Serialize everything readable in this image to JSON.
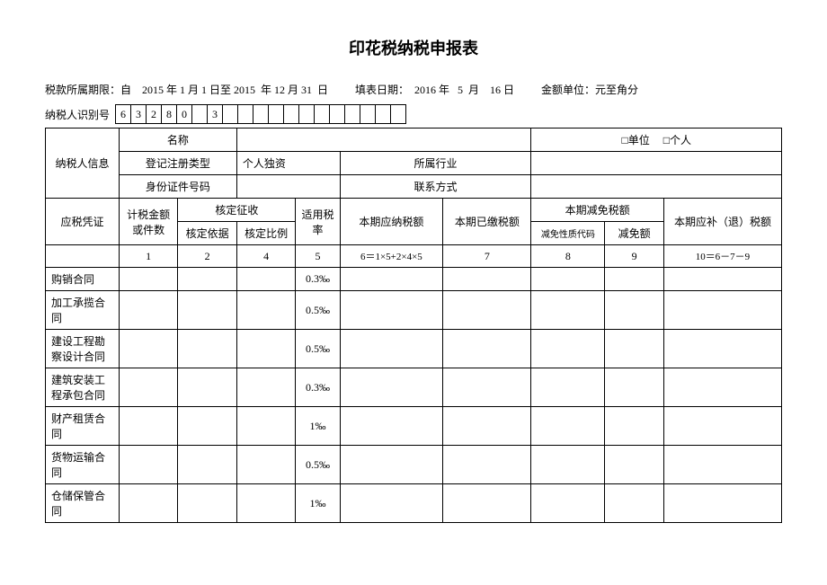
{
  "title": "印花税纳税申报表",
  "meta": {
    "period": "税款所属期限：自    2015 年 1 月 1 日至 2015  年 12 月 31  日",
    "fillDate": "填表日期：  2016 年   5  月    16 日",
    "unit": "金额单位：元至角分"
  },
  "idLabel": "纳税人识别号",
  "idCells": [
    "6",
    "3",
    "2",
    "8",
    "0",
    "",
    "3",
    "",
    "",
    "",
    "",
    "",
    "",
    "",
    "",
    "",
    "",
    "",
    ""
  ],
  "info": {
    "taxpayerInfo": "纳税人信息",
    "nameLabel": "名称",
    "entityTypeUnit": "□单位",
    "entityTypePerson": "□个人",
    "regTypeLabel": "登记注册类型",
    "regTypeValue": "个人独资",
    "industryLabel": "所属行业",
    "idDocLabel": "身份证件号码",
    "contactLabel": "联系方式"
  },
  "headers": {
    "voucher": "应税凭证",
    "taxBase": "计税金额或件数",
    "assessed": "核定征收",
    "assessBasis": "核定依据",
    "assessRatio": "核定比例",
    "rate": "适用税率",
    "payable": "本期应纳税额",
    "paid": "本期已缴税额",
    "reduced": "本期减免税额",
    "reduceCode": "减免性质代码",
    "reduceAmt": "减免额",
    "refund": "本期应补（退）税额"
  },
  "colNums": {
    "c1": "1",
    "c2": "2",
    "c4": "4",
    "c5": "5",
    "c6": "6＝1×5+2×4×5",
    "c7": "7",
    "c8": "8",
    "c9": "9",
    "c10": "10＝6－7－9"
  },
  "rows": [
    {
      "name": "购销合同",
      "rate": "0.3‰"
    },
    {
      "name": "加工承揽合同",
      "rate": "0.5‰"
    },
    {
      "name": "建设工程勘察设计合同",
      "rate": "0.5‰"
    },
    {
      "name": "建筑安装工程承包合同",
      "rate": "0.3‰"
    },
    {
      "name": "财产租赁合同",
      "rate": "1‰"
    },
    {
      "name": "货物运输合同",
      "rate": "0.5‰"
    },
    {
      "name": "仓储保管合同",
      "rate": "1‰"
    }
  ]
}
